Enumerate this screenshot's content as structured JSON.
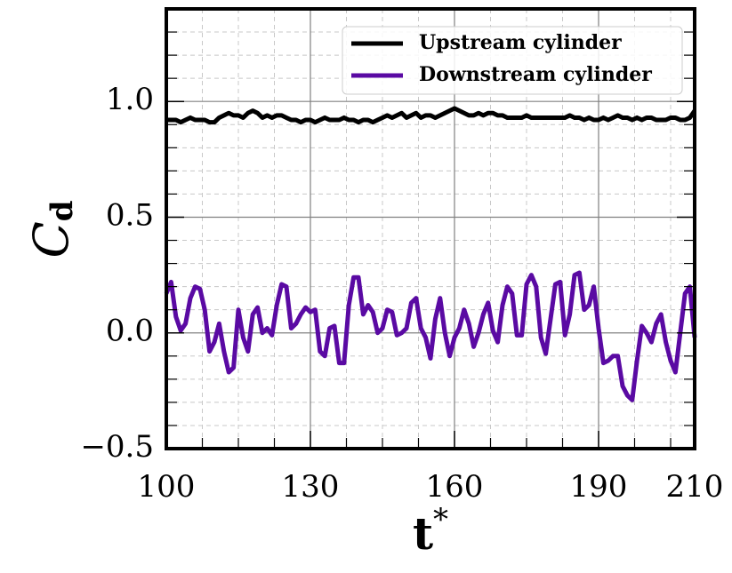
{
  "chart_data": {
    "type": "line",
    "xlabel": "t",
    "xlabel_sup": "*",
    "ylabel": "C",
    "ylabel_sub": "d",
    "x": [
      100,
      101,
      102,
      103,
      104,
      105,
      106,
      107,
      108,
      109,
      110,
      111,
      112,
      113,
      114,
      115,
      116,
      117,
      118,
      119,
      120,
      121,
      122,
      123,
      124,
      125,
      126,
      127,
      128,
      129,
      130,
      131,
      132,
      133,
      134,
      135,
      136,
      137,
      138,
      139,
      140,
      141,
      142,
      143,
      144,
      145,
      146,
      147,
      148,
      149,
      150,
      151,
      152,
      153,
      154,
      155,
      156,
      157,
      158,
      159,
      160,
      161,
      162,
      163,
      164,
      165,
      166,
      167,
      168,
      169,
      170,
      171,
      172,
      173,
      174,
      175,
      176,
      177,
      178,
      179,
      180,
      181,
      182,
      183,
      184,
      185,
      186,
      187,
      188,
      189,
      190,
      191,
      192,
      193,
      194,
      195,
      196,
      197,
      198,
      199,
      200,
      201,
      202,
      203,
      204,
      205,
      206,
      207,
      208,
      209,
      210
    ],
    "series": [
      {
        "name": "Upstream cylinder",
        "color": "#000000",
        "values": [
          0.92,
          0.92,
          0.92,
          0.91,
          0.92,
          0.93,
          0.92,
          0.92,
          0.92,
          0.91,
          0.91,
          0.93,
          0.94,
          0.95,
          0.94,
          0.94,
          0.93,
          0.95,
          0.96,
          0.95,
          0.93,
          0.94,
          0.93,
          0.94,
          0.94,
          0.93,
          0.92,
          0.92,
          0.91,
          0.92,
          0.92,
          0.91,
          0.92,
          0.93,
          0.92,
          0.92,
          0.92,
          0.93,
          0.92,
          0.92,
          0.91,
          0.92,
          0.92,
          0.91,
          0.92,
          0.93,
          0.94,
          0.93,
          0.94,
          0.95,
          0.93,
          0.94,
          0.95,
          0.93,
          0.94,
          0.94,
          0.93,
          0.94,
          0.95,
          0.96,
          0.97,
          0.96,
          0.95,
          0.94,
          0.94,
          0.95,
          0.94,
          0.95,
          0.95,
          0.94,
          0.94,
          0.93,
          0.93,
          0.93,
          0.93,
          0.94,
          0.93,
          0.93,
          0.93,
          0.93,
          0.93,
          0.93,
          0.93,
          0.93,
          0.94,
          0.93,
          0.93,
          0.92,
          0.93,
          0.92,
          0.92,
          0.93,
          0.92,
          0.93,
          0.94,
          0.93,
          0.93,
          0.92,
          0.93,
          0.92,
          0.93,
          0.93,
          0.92,
          0.92,
          0.92,
          0.93,
          0.93,
          0.92,
          0.92,
          0.93,
          0.96
        ]
      },
      {
        "name": "Downstream cylinder",
        "color": "#5a0aa3",
        "values": [
          0.17,
          0.22,
          0.07,
          0.01,
          0.04,
          0.15,
          0.2,
          0.19,
          0.1,
          -0.08,
          -0.04,
          0.04,
          -0.08,
          -0.17,
          -0.15,
          0.1,
          -0.02,
          -0.08,
          0.08,
          0.11,
          0.0,
          0.02,
          -0.01,
          0.12,
          0.21,
          0.2,
          0.02,
          0.04,
          0.08,
          0.11,
          0.09,
          0.1,
          -0.08,
          -0.1,
          0.02,
          0.03,
          -0.13,
          -0.13,
          0.12,
          0.24,
          0.24,
          0.08,
          0.12,
          0.09,
          0.0,
          0.02,
          0.1,
          0.09,
          -0.01,
          0.0,
          0.02,
          0.13,
          0.15,
          0.02,
          -0.02,
          -0.11,
          0.06,
          0.15,
          0.0,
          -0.1,
          -0.02,
          0.02,
          0.1,
          0.04,
          -0.06,
          0.0,
          0.08,
          0.13,
          0.01,
          -0.04,
          0.12,
          0.2,
          0.17,
          -0.01,
          -0.01,
          0.21,
          0.25,
          0.2,
          -0.02,
          -0.09,
          0.06,
          0.21,
          0.22,
          -0.01,
          0.08,
          0.25,
          0.26,
          0.1,
          0.12,
          0.2,
          0.02,
          -0.13,
          -0.12,
          -0.1,
          -0.1,
          -0.23,
          -0.27,
          -0.29,
          -0.12,
          0.03,
          0.0,
          -0.04,
          0.04,
          0.08,
          -0.04,
          -0.12,
          -0.17,
          0.0,
          0.17,
          0.2,
          -0.02
        ]
      }
    ],
    "xlim": [
      100,
      210
    ],
    "xticks": [
      100,
      130,
      160,
      190,
      210
    ],
    "xminor": [
      107.5,
      115,
      122.5,
      137.5,
      145,
      152.5,
      167.5,
      175,
      182.5,
      197.5,
      205
    ],
    "ylim": [
      -0.5,
      1.4
    ],
    "yticks": [
      {
        "value": -0.5,
        "label": "−0.5"
      },
      {
        "value": 0,
        "label": "0.0"
      },
      0.5,
      {
        "value": 1,
        "label": "1.0"
      }
    ],
    "yminor": [
      -0.4,
      -0.3,
      -0.2,
      -0.1,
      0.1,
      0.2,
      0.3,
      0.4,
      0.6,
      0.7,
      0.8,
      0.9,
      1.1,
      1.2,
      1.3
    ],
    "grid": true,
    "legend": "upper right"
  }
}
